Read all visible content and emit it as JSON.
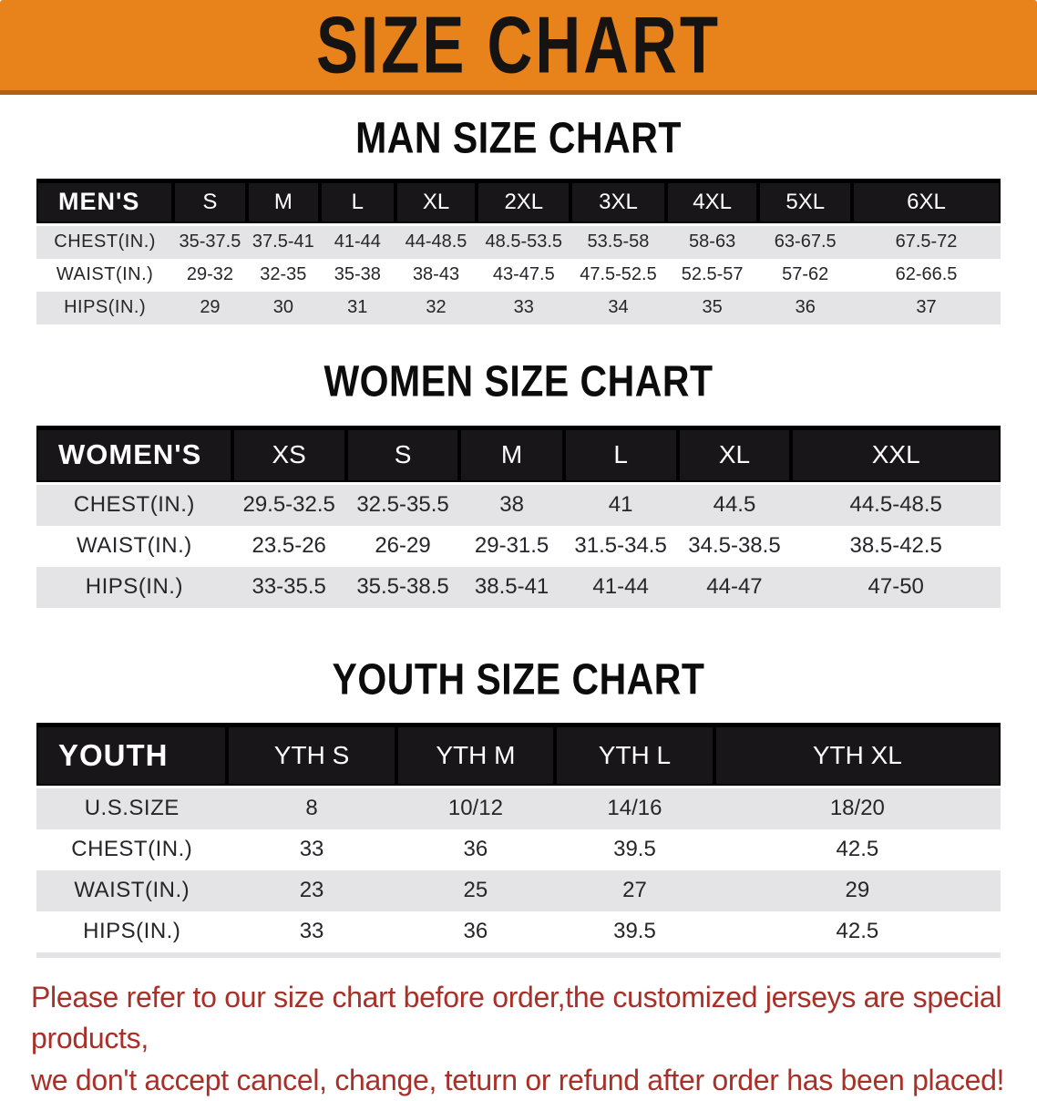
{
  "banner": {
    "title": "SIZE CHART",
    "bg_color": "#E8821B",
    "text_color": "#161412"
  },
  "sections": [
    {
      "id": "men",
      "heading": "MAN SIZE CHART",
      "table": {
        "header_label": "MEN'S",
        "columns": [
          "S",
          "M",
          "L",
          "XL",
          "2XL",
          "3XL",
          "4XL",
          "5XL",
          "6XL"
        ],
        "rows": [
          {
            "label": "CHEST(IN.)",
            "values": [
              "35-37.5",
              "37.5-41",
              "41-44",
              "44-48.5",
              "48.5-53.5",
              "53.5-58",
              "58-63",
              "63-67.5",
              "67.5-72"
            ]
          },
          {
            "label": "WAIST(IN.)",
            "values": [
              "29-32",
              "32-35",
              "35-38",
              "38-43",
              "43-47.5",
              "47.5-52.5",
              "52.5-57",
              "57-62",
              "62-66.5"
            ]
          },
          {
            "label": "HIPS(IN.)",
            "values": [
              "29",
              "30",
              "31",
              "32",
              "33",
              "34",
              "35",
              "36",
              "37"
            ]
          }
        ]
      }
    },
    {
      "id": "women",
      "heading": "WOMEN SIZE CHART",
      "table": {
        "header_label": "WOMEN'S",
        "columns": [
          "XS",
          "S",
          "M",
          "L",
          "XL",
          "XXL"
        ],
        "rows": [
          {
            "label": "CHEST(IN.)",
            "values": [
              "29.5-32.5",
              "32.5-35.5",
              "38",
              "41",
              "44.5",
              "44.5-48.5"
            ]
          },
          {
            "label": "WAIST(IN.)",
            "values": [
              "23.5-26",
              "26-29",
              "29-31.5",
              "31.5-34.5",
              "34.5-38.5",
              "38.5-42.5"
            ]
          },
          {
            "label": "HIPS(IN.)",
            "values": [
              "33-35.5",
              "35.5-38.5",
              "38.5-41",
              "41-44",
              "44-47",
              "47-50"
            ]
          }
        ]
      }
    },
    {
      "id": "youth",
      "heading": "YOUTH SIZE CHART",
      "table": {
        "header_label": "YOUTH",
        "columns": [
          "YTH S",
          "YTH M",
          "YTH L",
          "YTH XL"
        ],
        "rows": [
          {
            "label": "U.S.SIZE",
            "values": [
              "8",
              "10/12",
              "14/16",
              "18/20"
            ]
          },
          {
            "label": "CHEST(IN.)",
            "values": [
              "33",
              "36",
              "39.5",
              "42.5"
            ]
          },
          {
            "label": "WAIST(IN.)",
            "values": [
              "23",
              "25",
              "27",
              "29"
            ]
          },
          {
            "label": "HIPS(IN.)",
            "values": [
              "33",
              "36",
              "39.5",
              "42.5"
            ]
          }
        ]
      }
    }
  ],
  "disclaimer": {
    "line1": "Please refer to our size chart before order,the customized jerseys are special products,",
    "line2": "we don't accept cancel, change, teturn or refund after order has been placed!",
    "color": "#A93028"
  }
}
